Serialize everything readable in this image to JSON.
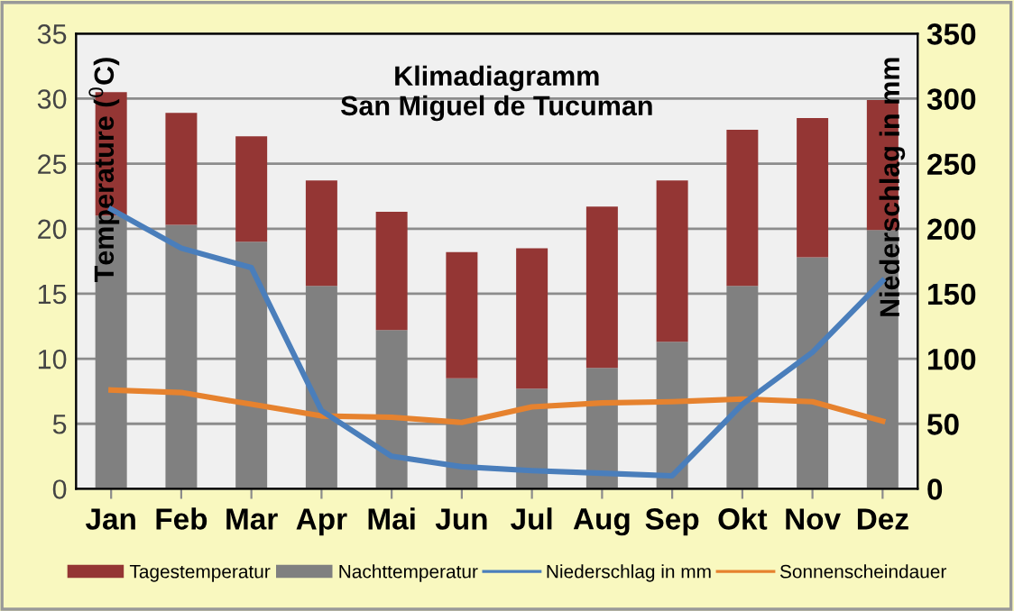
{
  "chart_data": {
    "type": "bar",
    "title": "Klimadiagramm\nSan Miguel de Tucuman",
    "ylabel": "Temperature ($^{0}$C)",
    "y2label": "Niederschlag in mm",
    "categories": [
      "Jan",
      "Feb",
      "Mar",
      "Apr",
      "Mai",
      "Jun",
      "Jul",
      "Aug",
      "Sep",
      "Okt",
      "Nov",
      "Dez"
    ],
    "stacked": true,
    "series": [
      {
        "name": "Nachttemperatur",
        "color": "#808080",
        "values": [
          21.0,
          20.3,
          19.0,
          15.6,
          12.2,
          8.5,
          7.7,
          9.3,
          11.3,
          15.6,
          17.8,
          19.9
        ]
      },
      {
        "name": "Tagestemperatur",
        "color": "#943634",
        "values": [
          9.5,
          8.6,
          8.1,
          8.1,
          9.1,
          9.7,
          10.8,
          12.4,
          12.4,
          12.0,
          10.7,
          10.0
        ]
      },
      {
        "name": "Niederschlag in mm",
        "type": "line",
        "axis": "y2",
        "color": "#4a7ebb",
        "values": [
          215,
          185,
          170,
          60,
          25,
          17,
          14,
          12,
          10,
          65,
          105,
          160
        ]
      },
      {
        "name": "Sonnenscheindauer",
        "type": "line",
        "color": "#e6822e",
        "values": [
          7.6,
          7.4,
          6.5,
          5.6,
          5.5,
          5.1,
          6.3,
          6.6,
          6.7,
          6.9,
          6.7,
          5.2
        ]
      }
    ],
    "ylim": [
      0,
      35
    ],
    "yticks": [
      0,
      5,
      10,
      15,
      20,
      25,
      30,
      35
    ],
    "y2lim": [
      0,
      350
    ],
    "y2ticks": [
      0,
      50,
      100,
      150,
      200,
      250,
      300,
      350
    ],
    "grid": "y",
    "legend": "bottom",
    "marker": "none",
    "line_style": "solid"
  }
}
